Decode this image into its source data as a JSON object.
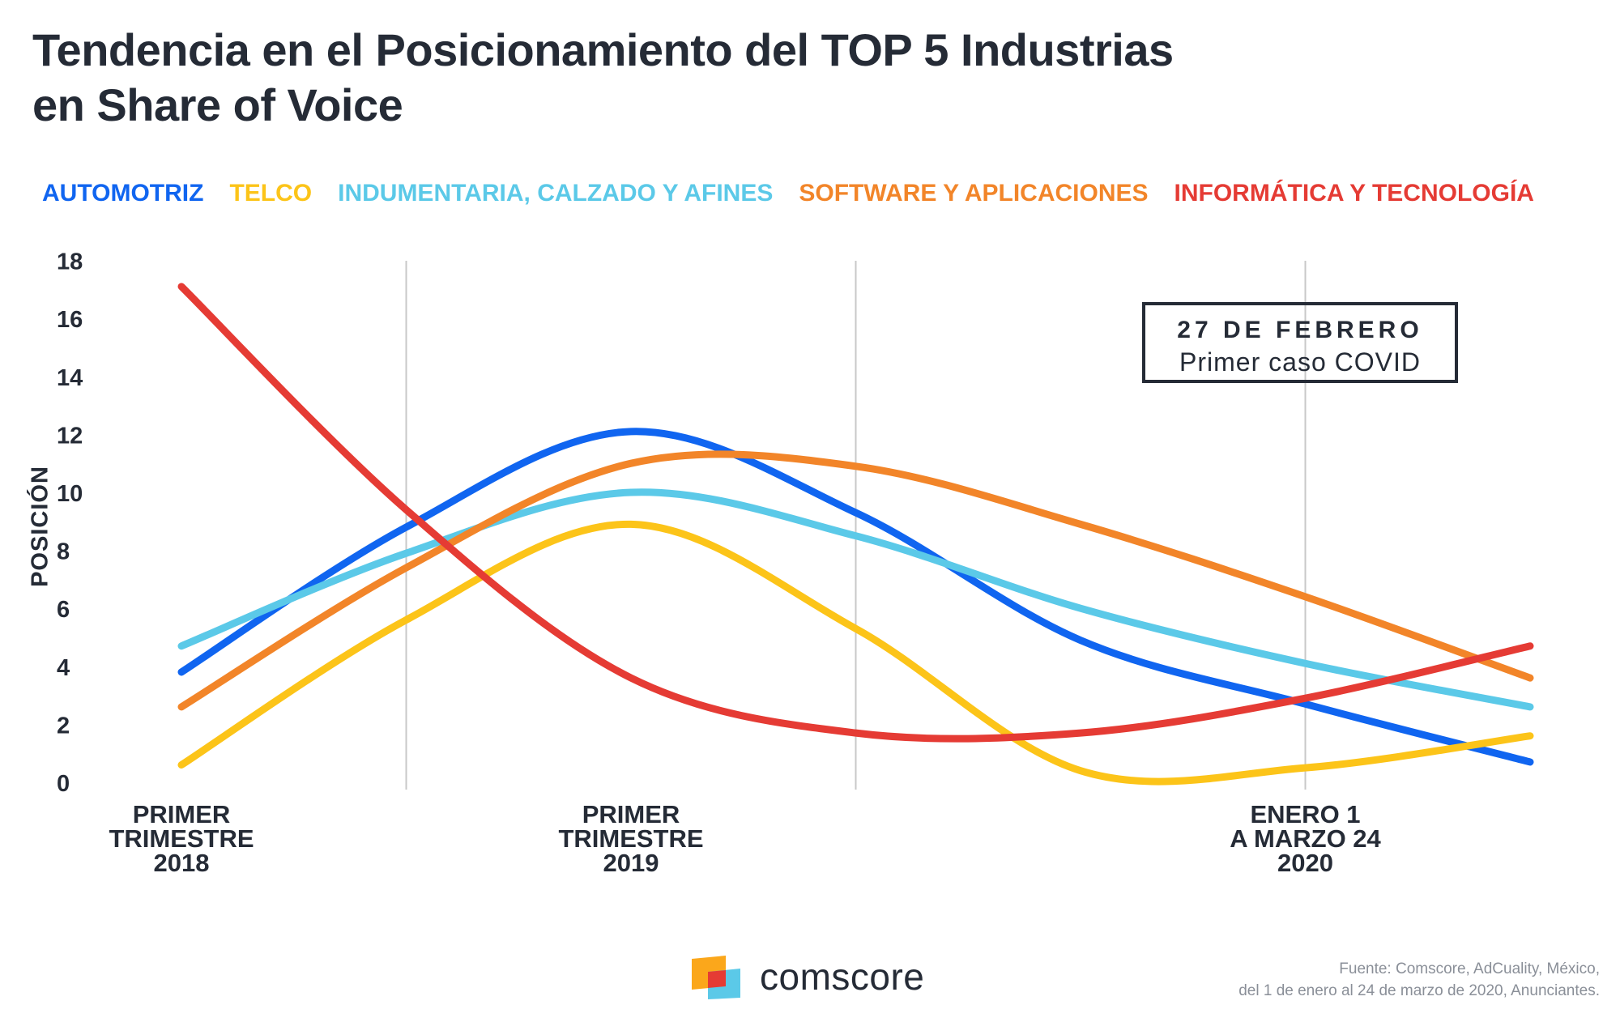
{
  "title": {
    "line1": "Tendencia en el Posicionamiento del TOP 5 Industrias",
    "line2": "en Share of Voice"
  },
  "annotation": {
    "title": "27 DE FEBRERO",
    "subtitle": "Primer caso COVID"
  },
  "source": {
    "line1": "Fuente: Comscore, AdCuality, México,",
    "line2": "del 1 de enero al 24 de marzo de 2020, Anunciantes."
  },
  "logo": {
    "text": "comscore",
    "icon": "comscore-logo-icon"
  },
  "colors": {
    "automotriz": "#1065f0",
    "telco": "#fcc419",
    "indumentaria": "#5bc9e8",
    "software": "#f28529",
    "informatica": "#e53b34",
    "text": "#252b36",
    "grid": "#c8c8c8"
  },
  "chart_data": {
    "type": "line",
    "title": "Tendencia en el Posicionamiento del TOP 5 Industrias en Share of Voice",
    "ylabel": "POSICIÓN",
    "xlabel": "",
    "ylim": [
      0,
      18
    ],
    "yticks": [
      "0",
      "2",
      "4",
      "6",
      "8",
      "10",
      "12",
      "14",
      "16",
      "18"
    ],
    "categories": [
      "PRIMER TRIMESTRE 2018",
      "PRIMER TRIMESTRE 2019",
      "ENERO 1 A MARZO 24 2020"
    ],
    "category_lines": [
      [
        "PRIMER",
        "TRIMESTRE",
        "2018"
      ],
      [
        "PRIMER",
        "TRIMESTRE",
        "2019"
      ],
      [
        "ENERO 1",
        "A MARZO 24",
        "2020"
      ]
    ],
    "legend_position": "top",
    "grid": "vertical",
    "x": [
      0,
      0.5,
      1,
      1.5,
      2,
      2.5,
      3
    ],
    "series": [
      {
        "name": "AUTOMOTRIZ",
        "color": "#1065f0",
        "values": [
          3.8,
          8.8,
          12.1,
          9.3,
          4.9,
          2.7,
          0.7
        ]
      },
      {
        "name": "TELCO",
        "color": "#fcc419",
        "values": [
          0.6,
          5.6,
          8.9,
          5.3,
          0.4,
          0.5,
          1.6
        ]
      },
      {
        "name": "INDUMENTARIA, CALZADO Y AFINES",
        "color": "#5bc9e8",
        "values": [
          4.7,
          7.9,
          10.0,
          8.5,
          6.0,
          4.1,
          2.6
        ]
      },
      {
        "name": "SOFTWARE Y APLICACIONES",
        "color": "#f28529",
        "values": [
          2.6,
          7.4,
          11.0,
          10.9,
          8.9,
          6.4,
          3.6
        ]
      },
      {
        "name": "INFORMÁTICA Y TECNOLOGÍA",
        "color": "#e53b34",
        "values": [
          17.1,
          9.4,
          3.6,
          1.7,
          1.7,
          2.9,
          4.7
        ]
      }
    ]
  }
}
